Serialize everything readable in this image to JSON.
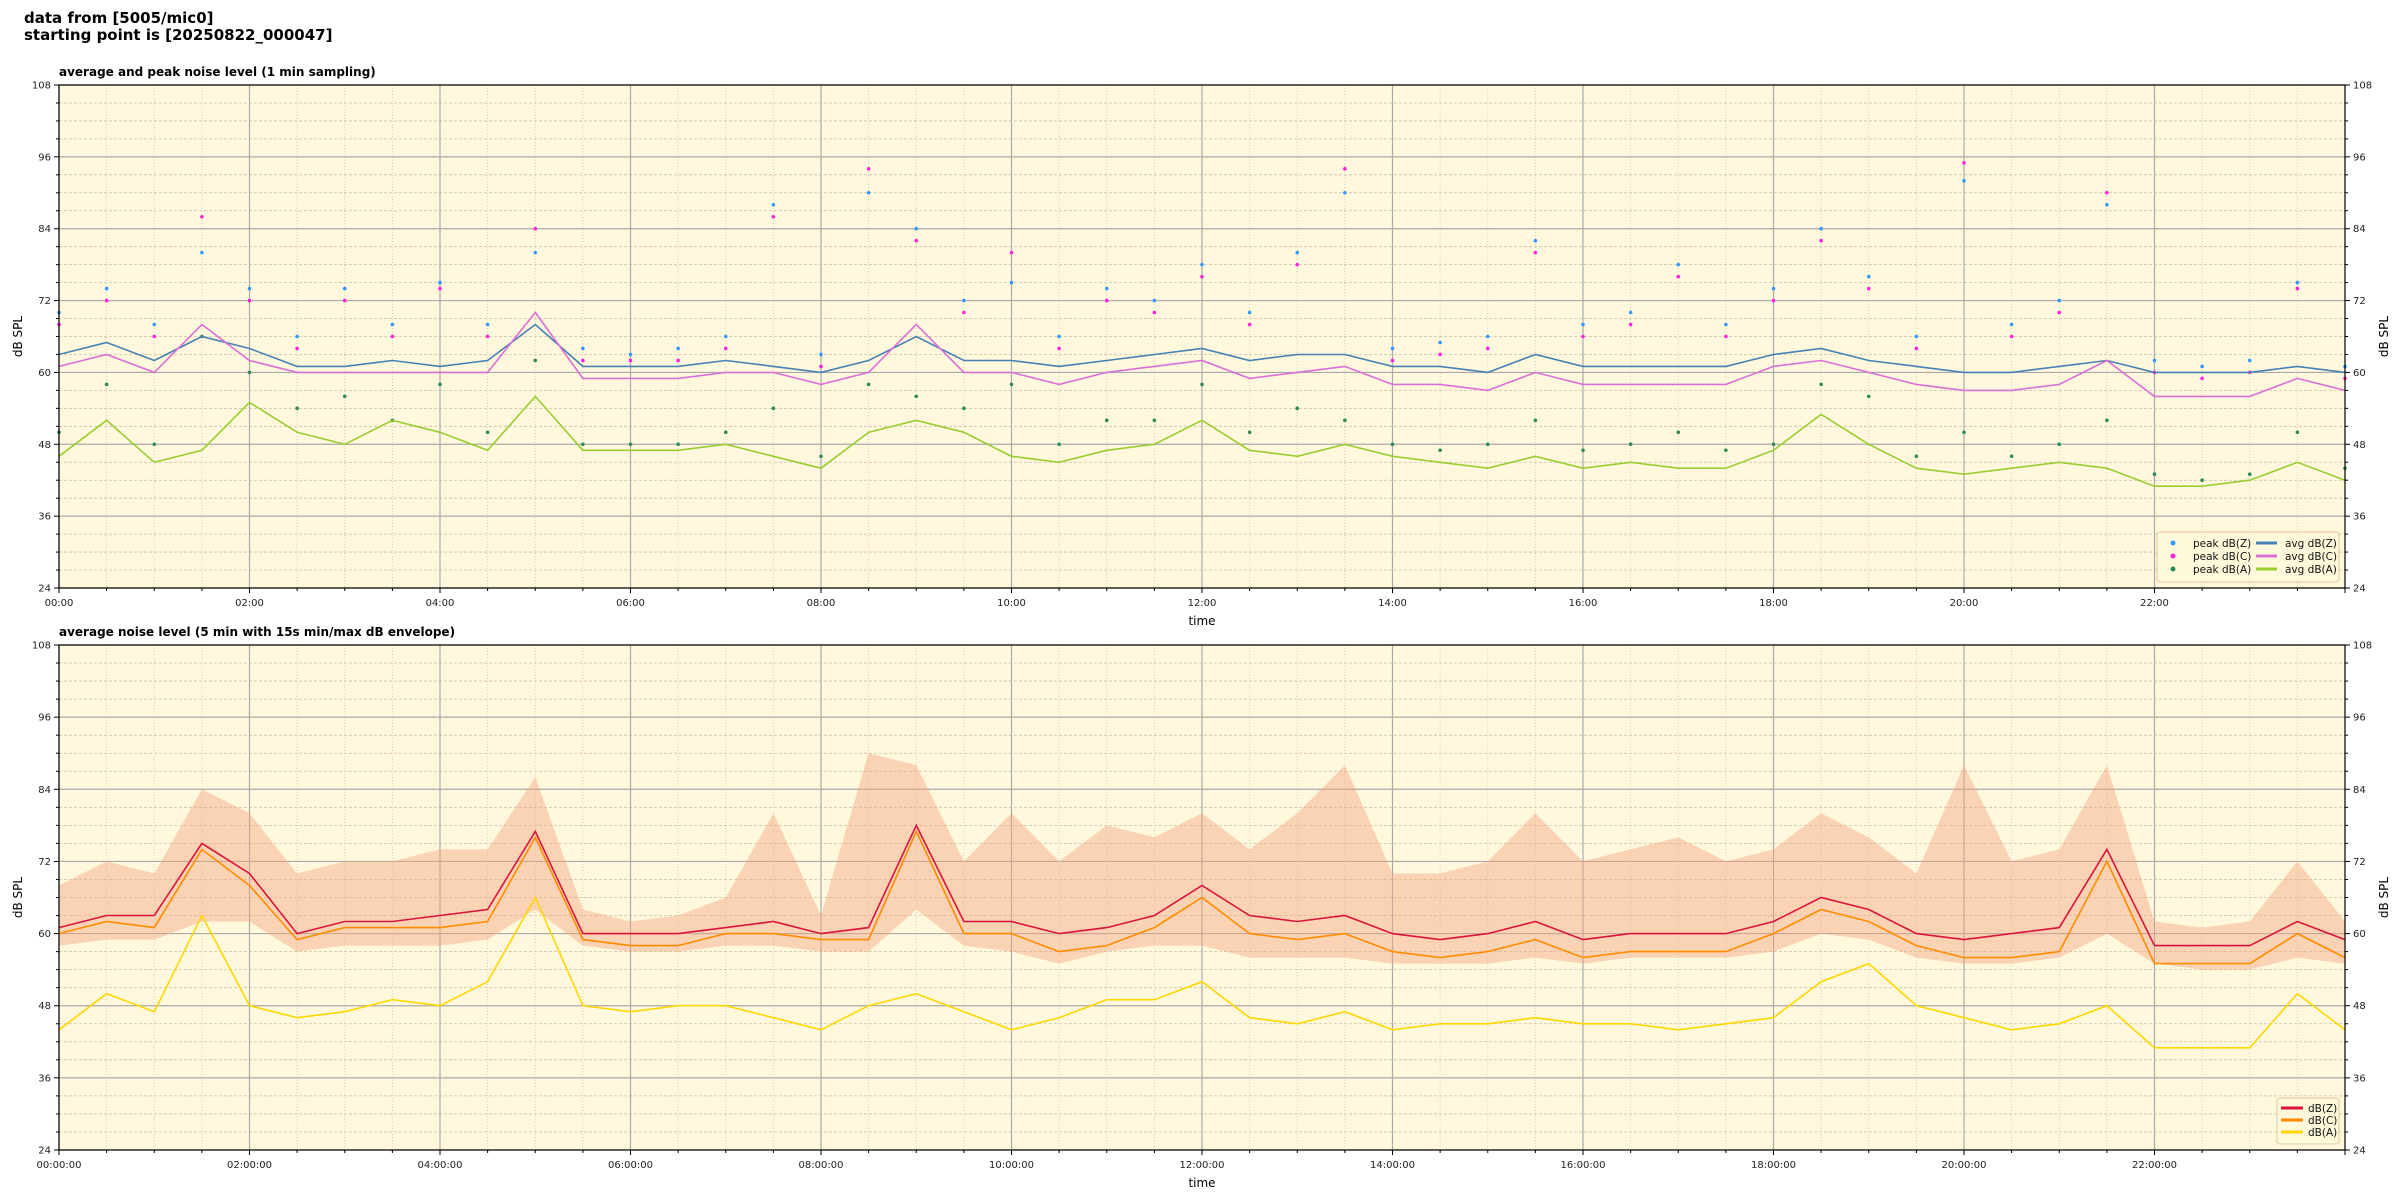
{
  "header": {
    "line1": "data from [5005/mic0]",
    "line2": "starting point is [20250822_000047]"
  },
  "colors": {
    "background": "#fff8dc",
    "peak_z": "#3399ff",
    "peak_c": "#ff22dd",
    "peak_a": "#2e8b57",
    "avg_z": "#4682b4",
    "avg_c": "#da70d6",
    "avg_a": "#9acd32",
    "z": "#dc143c",
    "c": "#ff8c00",
    "a": "#ffd700",
    "envelope": "#f4a582"
  },
  "chart_data": [
    {
      "type": "line",
      "title": "average and peak noise level (1 min sampling)",
      "xlabel": "time",
      "ylabel": "dB SPL",
      "xlim_hours": [
        0,
        24
      ],
      "ylim": [
        24,
        108
      ],
      "yticks": [
        24,
        36,
        48,
        60,
        72,
        84,
        96,
        108
      ],
      "xtick_labels": [
        "00:00",
        "02:00",
        "04:00",
        "06:00",
        "08:00",
        "10:00",
        "12:00",
        "14:00",
        "16:00",
        "18:00",
        "20:00",
        "22:00"
      ],
      "grid": true,
      "legend": "bottom-right",
      "x_hours_step": 0.5,
      "series": [
        {
          "name": "peak dB(Z)",
          "kind": "scatter",
          "color_key": "peak_z",
          "values": [
            70,
            74,
            68,
            80,
            74,
            66,
            74,
            68,
            75,
            68,
            80,
            64,
            63,
            64,
            66,
            88,
            63,
            90,
            84,
            72,
            75,
            66,
            74,
            72,
            78,
            70,
            80,
            90,
            64,
            65,
            66,
            82,
            68,
            70,
            78,
            68,
            74,
            84,
            76,
            66,
            92,
            68,
            72,
            88,
            62,
            61,
            62,
            75,
            61
          ]
        },
        {
          "name": "peak dB(C)",
          "kind": "scatter",
          "color_key": "peak_c",
          "values": [
            68,
            72,
            66,
            86,
            72,
            64,
            72,
            66,
            74,
            66,
            84,
            62,
            62,
            62,
            64,
            86,
            61,
            94,
            82,
            70,
            80,
            64,
            72,
            70,
            76,
            68,
            78,
            94,
            62,
            63,
            64,
            80,
            66,
            68,
            76,
            66,
            72,
            82,
            74,
            64,
            95,
            66,
            70,
            90,
            60,
            59,
            60,
            74,
            59
          ]
        },
        {
          "name": "peak dB(A)",
          "kind": "scatter",
          "color_key": "peak_a",
          "values": [
            50,
            58,
            48,
            66,
            60,
            54,
            56,
            52,
            58,
            50,
            62,
            48,
            48,
            48,
            50,
            54,
            46,
            58,
            56,
            54,
            58,
            48,
            52,
            52,
            58,
            50,
            54,
            52,
            48,
            47,
            48,
            52,
            47,
            48,
            50,
            47,
            48,
            58,
            56,
            46,
            50,
            46,
            48,
            52,
            43,
            42,
            43,
            50,
            44
          ]
        },
        {
          "name": "avg dB(Z)",
          "kind": "line",
          "color_key": "avg_z",
          "values": [
            63,
            65,
            62,
            66,
            64,
            61,
            61,
            62,
            61,
            62,
            68,
            61,
            61,
            61,
            62,
            61,
            60,
            62,
            66,
            62,
            62,
            61,
            62,
            63,
            64,
            62,
            63,
            63,
            61,
            61,
            60,
            63,
            61,
            61,
            61,
            61,
            63,
            64,
            62,
            61,
            60,
            60,
            61,
            62,
            60,
            60,
            60,
            61,
            60
          ]
        },
        {
          "name": "avg dB(C)",
          "kind": "line",
          "color_key": "avg_c",
          "values": [
            61,
            63,
            60,
            68,
            62,
            60,
            60,
            60,
            60,
            60,
            70,
            59,
            59,
            59,
            60,
            60,
            58,
            60,
            68,
            60,
            60,
            58,
            60,
            61,
            62,
            59,
            60,
            61,
            58,
            58,
            57,
            60,
            58,
            58,
            58,
            58,
            61,
            62,
            60,
            58,
            57,
            57,
            58,
            62,
            56,
            56,
            56,
            59,
            57
          ]
        },
        {
          "name": "avg dB(A)",
          "kind": "line",
          "color_key": "avg_a",
          "values": [
            46,
            52,
            45,
            47,
            55,
            50,
            48,
            52,
            50,
            47,
            56,
            47,
            47,
            47,
            48,
            46,
            44,
            50,
            52,
            50,
            46,
            45,
            47,
            48,
            52,
            47,
            46,
            48,
            46,
            45,
            44,
            46,
            44,
            45,
            44,
            44,
            47,
            53,
            48,
            44,
            43,
            44,
            45,
            44,
            41,
            41,
            42,
            45,
            42
          ]
        }
      ]
    },
    {
      "type": "line",
      "title": "average noise level (5 min with 15s min/max dB envelope)",
      "xlabel": "time",
      "ylabel": "dB SPL",
      "xlim_hours": [
        0,
        24
      ],
      "ylim": [
        24,
        108
      ],
      "yticks": [
        24,
        36,
        48,
        60,
        72,
        84,
        96,
        108
      ],
      "xtick_labels": [
        "00:00:00",
        "02:00:00",
        "04:00:00",
        "06:00:00",
        "08:00:00",
        "10:00:00",
        "12:00:00",
        "14:00:00",
        "16:00:00",
        "18:00:00",
        "20:00:00",
        "22:00:00"
      ],
      "grid": true,
      "legend": "bottom-right",
      "x_hours_step": 0.5,
      "envelope": {
        "color_key": "envelope",
        "max": [
          68,
          72,
          70,
          84,
          80,
          70,
          72,
          72,
          74,
          74,
          86,
          64,
          62,
          63,
          66,
          80,
          63,
          90,
          88,
          72,
          80,
          72,
          78,
          76,
          80,
          74,
          80,
          88,
          70,
          70,
          72,
          80,
          72,
          74,
          76,
          72,
          74,
          80,
          76,
          70,
          88,
          72,
          74,
          88,
          62,
          61,
          62,
          72,
          62
        ],
        "min": [
          58,
          59,
          59,
          62,
          62,
          57,
          58,
          58,
          58,
          59,
          64,
          58,
          57,
          57,
          58,
          58,
          57,
          57,
          64,
          58,
          57,
          55,
          57,
          58,
          58,
          56,
          56,
          56,
          55,
          55,
          55,
          56,
          55,
          56,
          56,
          56,
          57,
          60,
          59,
          56,
          55,
          55,
          56,
          60,
          55,
          54,
          54,
          56,
          55
        ]
      },
      "series": [
        {
          "name": "dB(Z)",
          "kind": "line",
          "color_key": "z",
          "values": [
            61,
            63,
            63,
            75,
            70,
            60,
            62,
            62,
            63,
            64,
            77,
            60,
            60,
            60,
            61,
            62,
            60,
            61,
            78,
            62,
            62,
            60,
            61,
            63,
            68,
            63,
            62,
            63,
            60,
            59,
            60,
            62,
            59,
            60,
            60,
            60,
            62,
            66,
            64,
            60,
            59,
            60,
            61,
            74,
            58,
            58,
            58,
            62,
            59
          ]
        },
        {
          "name": "dB(C)",
          "kind": "line",
          "color_key": "c",
          "values": [
            60,
            62,
            61,
            74,
            68,
            59,
            61,
            61,
            61,
            62,
            76,
            59,
            58,
            58,
            60,
            60,
            59,
            59,
            77,
            60,
            60,
            57,
            58,
            61,
            66,
            60,
            59,
            60,
            57,
            56,
            57,
            59,
            56,
            57,
            57,
            57,
            60,
            64,
            62,
            58,
            56,
            56,
            57,
            72,
            55,
            55,
            55,
            60,
            56
          ]
        },
        {
          "name": "dB(A)",
          "kind": "line",
          "color_key": "a",
          "values": [
            44,
            50,
            47,
            63,
            48,
            46,
            47,
            49,
            48,
            52,
            66,
            48,
            47,
            48,
            48,
            46,
            44,
            48,
            50,
            47,
            44,
            46,
            49,
            49,
            52,
            46,
            45,
            47,
            44,
            45,
            45,
            46,
            45,
            45,
            44,
            45,
            46,
            52,
            55,
            48,
            46,
            44,
            45,
            48,
            41,
            41,
            41,
            50,
            44
          ]
        }
      ]
    }
  ]
}
